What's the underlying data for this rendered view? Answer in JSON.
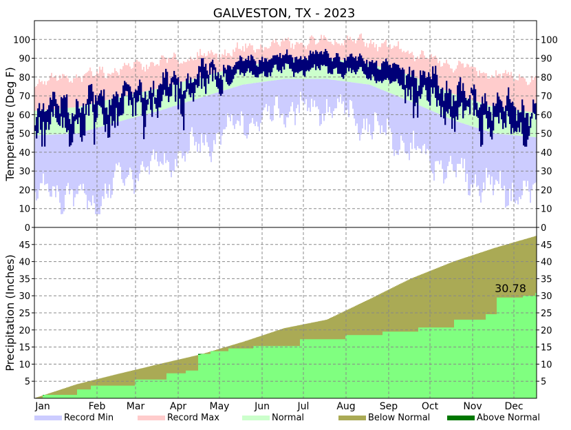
{
  "chart_data": {
    "type": "area",
    "title": "GALVESTON, TX - 2023",
    "months": [
      "Jan",
      "Feb",
      "Mar",
      "Apr",
      "May",
      "Jun",
      "Jul",
      "Aug",
      "Sep",
      "Oct",
      "Nov",
      "Dec"
    ],
    "temperature": {
      "ylabel": "Temperature (Deg F)",
      "ylim": [
        0,
        110
      ],
      "yticks": [
        0,
        10,
        20,
        30,
        40,
        50,
        60,
        70,
        80,
        90,
        100
      ],
      "normal_low_anchors": [
        [
          1,
          49
        ],
        [
          32,
          50
        ],
        [
          60,
          56
        ],
        [
          91,
          62
        ],
        [
          121,
          69
        ],
        [
          152,
          76
        ],
        [
          182,
          79
        ],
        [
          213,
          79
        ],
        [
          244,
          76
        ],
        [
          274,
          67
        ],
        [
          305,
          57
        ],
        [
          335,
          50
        ],
        [
          365,
          48
        ]
      ],
      "normal_high_anchors": [
        [
          1,
          62
        ],
        [
          32,
          64
        ],
        [
          60,
          69
        ],
        [
          91,
          74
        ],
        [
          121,
          80
        ],
        [
          152,
          86
        ],
        [
          182,
          89
        ],
        [
          213,
          90
        ],
        [
          244,
          87
        ],
        [
          274,
          81
        ],
        [
          305,
          71
        ],
        [
          335,
          64
        ],
        [
          365,
          61
        ]
      ],
      "record_min_anchors": [
        [
          1,
          22
        ],
        [
          32,
          20
        ],
        [
          45,
          14
        ],
        [
          60,
          28
        ],
        [
          91,
          36
        ],
        [
          121,
          46
        ],
        [
          152,
          58
        ],
        [
          182,
          66
        ],
        [
          213,
          67
        ],
        [
          244,
          58
        ],
        [
          274,
          44
        ],
        [
          305,
          33
        ],
        [
          335,
          24
        ],
        [
          365,
          20
        ]
      ],
      "record_max_anchors": [
        [
          1,
          78
        ],
        [
          32,
          80
        ],
        [
          60,
          84
        ],
        [
          91,
          88
        ],
        [
          121,
          91
        ],
        [
          152,
          95
        ],
        [
          182,
          98
        ],
        [
          213,
          99
        ],
        [
          244,
          99
        ],
        [
          274,
          93
        ],
        [
          305,
          87
        ],
        [
          335,
          81
        ],
        [
          365,
          79
        ]
      ],
      "observed_range": {
        "low": 43,
        "high": 101
      }
    },
    "precipitation": {
      "ylabel": "Precipitation (Inches)",
      "ylim": [
        0,
        50
      ],
      "yticks": [
        5,
        10,
        15,
        20,
        25,
        30,
        35,
        40,
        45
      ],
      "normal_cumulative": [
        [
          1,
          0.1
        ],
        [
          32,
          4.2
        ],
        [
          60,
          7.0
        ],
        [
          91,
          10.0
        ],
        [
          121,
          12.8
        ],
        [
          152,
          16.5
        ],
        [
          182,
          20.5
        ],
        [
          213,
          23.0
        ],
        [
          244,
          29.0
        ],
        [
          274,
          35.0
        ],
        [
          305,
          40.0
        ],
        [
          335,
          44.0
        ],
        [
          365,
          47.5
        ]
      ],
      "actual_cumulative": [
        [
          1,
          0
        ],
        [
          7,
          1.0
        ],
        [
          32,
          2.6
        ],
        [
          42,
          3.7
        ],
        [
          74,
          5.5
        ],
        [
          97,
          7.3
        ],
        [
          111,
          8.1
        ],
        [
          120,
          13.0
        ],
        [
          129,
          13.8
        ],
        [
          142,
          14.6
        ],
        [
          160,
          15.3
        ],
        [
          194,
          17.3
        ],
        [
          227,
          18.5
        ],
        [
          254,
          19.5
        ],
        [
          280,
          20.7
        ],
        [
          306,
          23.0
        ],
        [
          329,
          24.6
        ],
        [
          337,
          29.5
        ],
        [
          356,
          30.0
        ],
        [
          365,
          30.78
        ]
      ],
      "year_to_date_label": "30.78"
    },
    "legend": [
      {
        "label": "Record Min",
        "color": "#ccccff"
      },
      {
        "label": "Record Max",
        "color": "#ffcccc"
      },
      {
        "label": "Normal",
        "color": "#ccffcc"
      },
      {
        "label": "Below Normal",
        "color": "#aaaa55"
      },
      {
        "label": "Above Normal",
        "color": "#007700"
      }
    ],
    "colors": {
      "observed": "#000077",
      "actual_precip": "#80ff80",
      "record_min": "#ccccff",
      "record_max": "#ffcccc",
      "normal": "#ccffcc",
      "below_normal": "#aaaa55",
      "above_normal": "#007700"
    }
  }
}
